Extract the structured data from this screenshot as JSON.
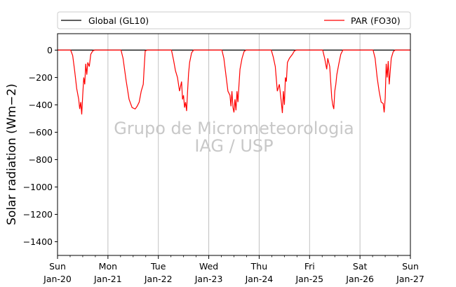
{
  "chart_data": {
    "type": "line",
    "title": "",
    "xlabel": "",
    "ylabel": "Solar radiation ($Wm{-2}$)",
    "ylabel_display": "Solar radiation (Wm−2)",
    "ylim": [
      -1500,
      120
    ],
    "yticks": [
      0,
      -200,
      -400,
      -600,
      -800,
      -1000,
      -1200,
      -1400
    ],
    "ytick_labels": [
      "0",
      "−200",
      "−400",
      "−600",
      "−800",
      "−1000",
      "−1200",
      "−1400"
    ],
    "xlim": [
      "2020-01-20",
      "2020-01-27"
    ],
    "xticks": [
      {
        "day": "Sun",
        "date": "Jan-20"
      },
      {
        "day": "Mon",
        "date": "Jan-21"
      },
      {
        "day": "Tue",
        "date": "Jan-22"
      },
      {
        "day": "Wed",
        "date": "Jan-23"
      },
      {
        "day": "Thu",
        "date": "Jan-24"
      },
      {
        "day": "Fri",
        "date": "Jan-25"
      },
      {
        "day": "Sat",
        "date": "Jan-26"
      },
      {
        "day": "Sun",
        "date": "Jan-27"
      }
    ],
    "grid": "vertical",
    "legend_position": "top",
    "watermark": [
      "Grupo de Micrometeorologia",
      "IAG / USP"
    ],
    "series": [
      {
        "name": "Global (GL10)",
        "color": "#000000",
        "x": [
          "2020-01-20",
          "2020-01-27"
        ],
        "y": [
          0,
          0
        ]
      },
      {
        "name": "PAR (FO30)",
        "color": "#ff0000",
        "daily_min": [
          {
            "date": "2020-01-20",
            "min": -470
          },
          {
            "date": "2020-01-21",
            "min": -430
          },
          {
            "date": "2020-01-22",
            "min": -445
          },
          {
            "date": "2020-01-23",
            "min": -455
          },
          {
            "date": "2020-01-24",
            "min": -460
          },
          {
            "date": "2020-01-25",
            "min": -430
          },
          {
            "date": "2020-01-26",
            "min": -455
          }
        ],
        "points": [
          [
            0.0,
            0
          ],
          [
            0.26,
            0
          ],
          [
            0.3,
            -40
          ],
          [
            0.34,
            -150
          ],
          [
            0.38,
            -280
          ],
          [
            0.42,
            -360
          ],
          [
            0.44,
            -430
          ],
          [
            0.46,
            -380
          ],
          [
            0.48,
            -470
          ],
          [
            0.5,
            -330
          ],
          [
            0.52,
            -200
          ],
          [
            0.54,
            -250
          ],
          [
            0.56,
            -100
          ],
          [
            0.58,
            -180
          ],
          [
            0.6,
            -90
          ],
          [
            0.63,
            -120
          ],
          [
            0.66,
            -30
          ],
          [
            0.7,
            -5
          ],
          [
            0.74,
            0
          ],
          [
            1.0,
            0
          ],
          [
            1.26,
            0
          ],
          [
            1.3,
            -60
          ],
          [
            1.36,
            -220
          ],
          [
            1.42,
            -360
          ],
          [
            1.48,
            -420
          ],
          [
            1.54,
            -430
          ],
          [
            1.58,
            -410
          ],
          [
            1.62,
            -380
          ],
          [
            1.66,
            -300
          ],
          [
            1.7,
            -250
          ],
          [
            1.72,
            -120
          ],
          [
            1.74,
            -5
          ],
          [
            1.78,
            0
          ],
          [
            2.0,
            0
          ],
          [
            2.26,
            0
          ],
          [
            2.3,
            -70
          ],
          [
            2.34,
            -150
          ],
          [
            2.38,
            -200
          ],
          [
            2.42,
            -300
          ],
          [
            2.46,
            -230
          ],
          [
            2.48,
            -360
          ],
          [
            2.5,
            -330
          ],
          [
            2.52,
            -420
          ],
          [
            2.54,
            -380
          ],
          [
            2.56,
            -445
          ],
          [
            2.58,
            -300
          ],
          [
            2.6,
            -170
          ],
          [
            2.62,
            -90
          ],
          [
            2.66,
            -20
          ],
          [
            2.7,
            0
          ],
          [
            3.0,
            0
          ],
          [
            3.26,
            0
          ],
          [
            3.3,
            -60
          ],
          [
            3.34,
            -180
          ],
          [
            3.38,
            -300
          ],
          [
            3.42,
            -330
          ],
          [
            3.44,
            -410
          ],
          [
            3.46,
            -300
          ],
          [
            3.48,
            -420
          ],
          [
            3.5,
            -455
          ],
          [
            3.52,
            -360
          ],
          [
            3.54,
            -440
          ],
          [
            3.56,
            -300
          ],
          [
            3.58,
            -380
          ],
          [
            3.6,
            -250
          ],
          [
            3.62,
            -140
          ],
          [
            3.66,
            -60
          ],
          [
            3.7,
            -10
          ],
          [
            3.74,
            0
          ],
          [
            4.0,
            0
          ],
          [
            4.24,
            0
          ],
          [
            4.28,
            -50
          ],
          [
            4.32,
            -120
          ],
          [
            4.36,
            -300
          ],
          [
            4.4,
            -250
          ],
          [
            4.44,
            -380
          ],
          [
            4.46,
            -460
          ],
          [
            4.48,
            -300
          ],
          [
            4.5,
            -400
          ],
          [
            4.52,
            -200
          ],
          [
            4.54,
            -230
          ],
          [
            4.56,
            -90
          ],
          [
            4.6,
            -60
          ],
          [
            4.66,
            -30
          ],
          [
            4.7,
            -5
          ],
          [
            4.74,
            0
          ],
          [
            5.0,
            0
          ],
          [
            5.26,
            0
          ],
          [
            5.3,
            -60
          ],
          [
            5.34,
            -140
          ],
          [
            5.36,
            -60
          ],
          [
            5.4,
            -120
          ],
          [
            5.44,
            -350
          ],
          [
            5.46,
            -400
          ],
          [
            5.48,
            -430
          ],
          [
            5.5,
            -300
          ],
          [
            5.52,
            -250
          ],
          [
            5.54,
            -180
          ],
          [
            5.58,
            -100
          ],
          [
            5.62,
            -30
          ],
          [
            5.66,
            0
          ],
          [
            6.0,
            0
          ],
          [
            6.26,
            0
          ],
          [
            6.3,
            -60
          ],
          [
            6.34,
            -200
          ],
          [
            6.38,
            -300
          ],
          [
            6.42,
            -380
          ],
          [
            6.46,
            -390
          ],
          [
            6.48,
            -455
          ],
          [
            6.5,
            -350
          ],
          [
            6.52,
            -100
          ],
          [
            6.54,
            -200
          ],
          [
            6.56,
            -80
          ],
          [
            6.58,
            -250
          ],
          [
            6.6,
            -150
          ],
          [
            6.62,
            -60
          ],
          [
            6.66,
            -10
          ],
          [
            6.7,
            0
          ],
          [
            7.0,
            0
          ]
        ]
      }
    ]
  }
}
